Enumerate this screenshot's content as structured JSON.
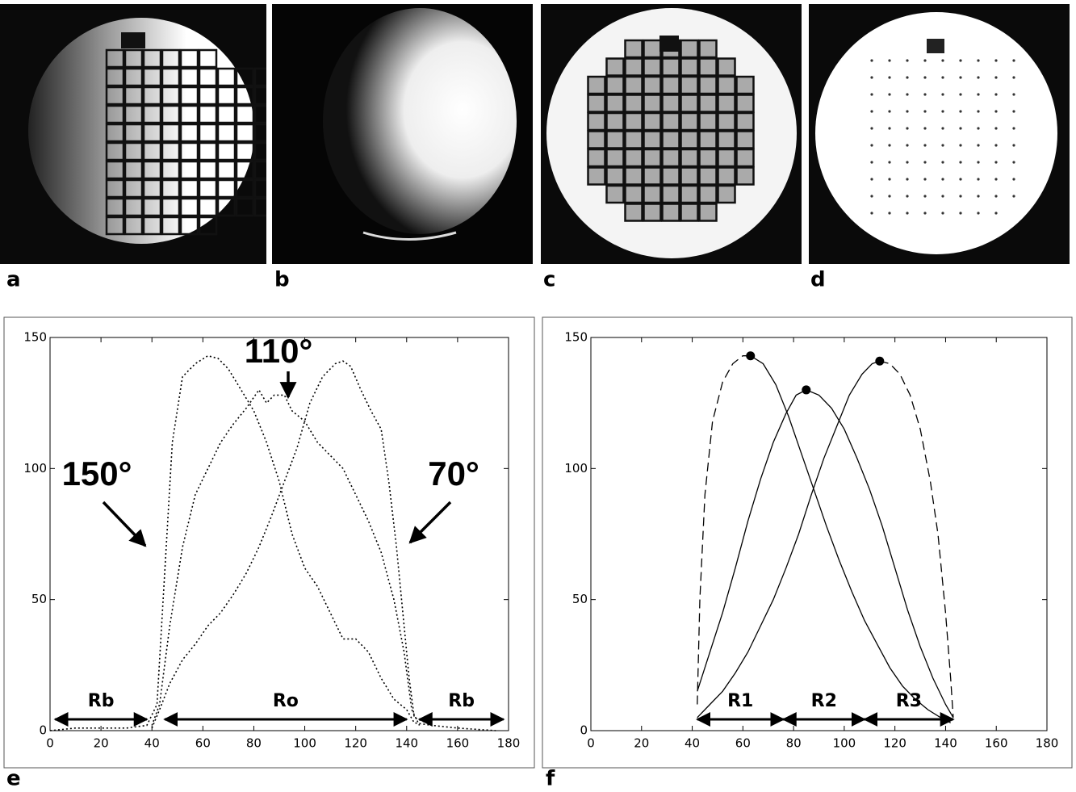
{
  "panels": [
    {
      "label": "a"
    },
    {
      "label": "b"
    },
    {
      "label": "c"
    },
    {
      "label": "d"
    }
  ],
  "chart_data": [
    {
      "type": "line",
      "label": "e",
      "xlim": [
        0,
        180
      ],
      "ylim": [
        0,
        150
      ],
      "xticks": [
        0,
        20,
        40,
        60,
        80,
        100,
        120,
        140,
        160,
        180
      ],
      "yticks": [
        0,
        50,
        100,
        150
      ],
      "series": [
        {
          "color": "#000000",
          "dash": "dotted",
          "x": [
            0,
            10,
            20,
            30,
            38,
            42,
            45,
            48,
            52,
            57,
            62,
            66,
            70,
            75,
            80,
            85,
            90,
            95,
            100,
            105,
            110,
            115,
            120,
            125,
            130,
            135,
            140,
            143,
            150
          ],
          "values": [
            0,
            1,
            1,
            1,
            2,
            10,
            60,
            110,
            135,
            140,
            143,
            142,
            138,
            130,
            122,
            110,
            95,
            75,
            62,
            55,
            45,
            35,
            35,
            30,
            20,
            12,
            8,
            3,
            2
          ]
        },
        {
          "color": "#000000",
          "dash": "dotted",
          "x": [
            40,
            43,
            47,
            52,
            57,
            62,
            67,
            72,
            77,
            82,
            85,
            88,
            92,
            95,
            100,
            105,
            110,
            115,
            120,
            125,
            130,
            135,
            139,
            142,
            145
          ],
          "values": [
            2,
            10,
            40,
            70,
            90,
            100,
            110,
            117,
            123,
            130,
            125,
            128,
            128,
            122,
            118,
            110,
            105,
            100,
            90,
            80,
            68,
            50,
            30,
            8,
            2
          ]
        },
        {
          "color": "#000000",
          "dash": "dotted",
          "x": [
            40,
            43,
            47,
            52,
            57,
            62,
            67,
            72,
            77,
            82,
            87,
            92,
            97,
            102,
            107,
            112,
            115,
            118,
            122,
            126,
            130,
            133,
            136,
            139,
            141,
            143,
            150,
            160,
            175
          ],
          "values": [
            1,
            8,
            18,
            27,
            33,
            40,
            45,
            52,
            60,
            70,
            82,
            95,
            108,
            125,
            135,
            140,
            141,
            139,
            130,
            122,
            115,
            95,
            70,
            40,
            20,
            5,
            2,
            1,
            0
          ]
        }
      ],
      "annotations": [
        {
          "text": "150°"
        },
        {
          "text": "110°"
        },
        {
          "text": "70°"
        }
      ],
      "regions": [
        {
          "label": "Rb",
          "from": 2,
          "to": 38
        },
        {
          "label": "Ro",
          "from": 45,
          "to": 140
        },
        {
          "label": "Rb",
          "from": 145,
          "to": 178
        }
      ]
    },
    {
      "type": "line",
      "label": "f",
      "xlim": [
        0,
        180
      ],
      "ylim": [
        0,
        150
      ],
      "xticks": [
        0,
        20,
        40,
        60,
        80,
        100,
        120,
        140,
        160,
        180
      ],
      "yticks": [
        0,
        50,
        100,
        150
      ],
      "series": [
        {
          "color": "#000000",
          "dash": "dashed",
          "x": [
            42,
            43,
            45,
            48,
            52,
            56,
            60,
            63
          ],
          "values": [
            10,
            50,
            90,
            118,
            133,
            140,
            143,
            143
          ]
        },
        {
          "color": "#000000",
          "dash": "solid",
          "x": [
            63,
            68,
            73,
            78,
            83,
            88,
            93,
            98,
            103,
            108,
            113,
            118,
            123,
            128,
            133,
            138,
            142
          ],
          "values": [
            143,
            140,
            132,
            120,
            106,
            92,
            78,
            65,
            53,
            42,
            33,
            24,
            17,
            12,
            8,
            5,
            3
          ]
        },
        {
          "color": "#000000",
          "dash": "solid",
          "x": [
            42,
            47,
            52,
            57,
            62,
            67,
            72,
            77,
            81,
            85,
            90,
            95,
            100,
            105,
            110,
            115,
            120,
            125,
            130,
            135,
            140,
            143
          ],
          "values": [
            15,
            30,
            45,
            62,
            80,
            96,
            110,
            121,
            128,
            130,
            128,
            123,
            115,
            104,
            92,
            78,
            62,
            46,
            32,
            20,
            10,
            5
          ]
        },
        {
          "color": "#000000",
          "dash": "solid",
          "x": [
            42,
            47,
            52,
            57,
            62,
            67,
            72,
            77,
            82,
            87,
            92,
            97,
            102,
            107,
            111,
            114
          ],
          "values": [
            5,
            10,
            15,
            22,
            30,
            40,
            50,
            62,
            75,
            90,
            104,
            116,
            128,
            136,
            140,
            141
          ]
        },
        {
          "color": "#000000",
          "dash": "dashed",
          "x": [
            114,
            118,
            122,
            126,
            130,
            134,
            137,
            140,
            142,
            143
          ],
          "values": [
            141,
            140,
            136,
            128,
            115,
            95,
            75,
            45,
            20,
            5
          ]
        },
        {
          "color": "#000000",
          "dash": "none",
          "marker": true,
          "x": [
            63,
            85,
            114
          ],
          "values": [
            143,
            130,
            141
          ]
        }
      ],
      "regions": [
        {
          "label": "R1",
          "from": 42,
          "to": 76
        },
        {
          "label": "R2",
          "from": 76,
          "to": 108
        },
        {
          "label": "R3",
          "from": 108,
          "to": 143
        }
      ]
    }
  ]
}
